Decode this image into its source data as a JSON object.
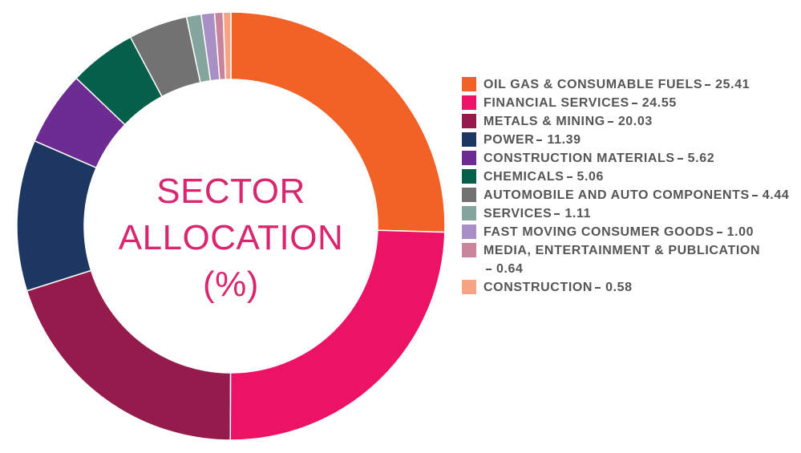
{
  "chart_data": {
    "type": "donut",
    "title": "SECTOR ALLOCATION (%)",
    "categories": [
      "OIL GAS & CONSUMABLE FUELS",
      "FINANCIAL SERVICES",
      "METALS & MINING",
      "POWER",
      "CONSTRUCTION MATERIALS",
      "CHEMICALS",
      "AUTOMOBILE AND AUTO COMPONENTS",
      "SERVICES",
      "FAST MOVING CONSUMER GOODS",
      "MEDIA, ENTERTAINMENT & PUBLICATION",
      "CONSTRUCTION"
    ],
    "values": [
      25.41,
      24.55,
      20.03,
      11.39,
      5.62,
      5.06,
      4.44,
      1.11,
      1.0,
      0.64,
      0.58
    ],
    "value_labels": [
      "25.41",
      "24.55",
      "20.03",
      "11.39",
      "5.62",
      "5.06",
      "4.44",
      "1.11",
      "1.00",
      "0.64",
      "0.58"
    ],
    "colors": [
      "#f26226",
      "#ec1266",
      "#951b4c",
      "#1c3862",
      "#6c2c91",
      "#065f4a",
      "#727272",
      "#84a59c",
      "#a990c4",
      "#c9839a",
      "#f7a484"
    ],
    "legend": "right"
  }
}
